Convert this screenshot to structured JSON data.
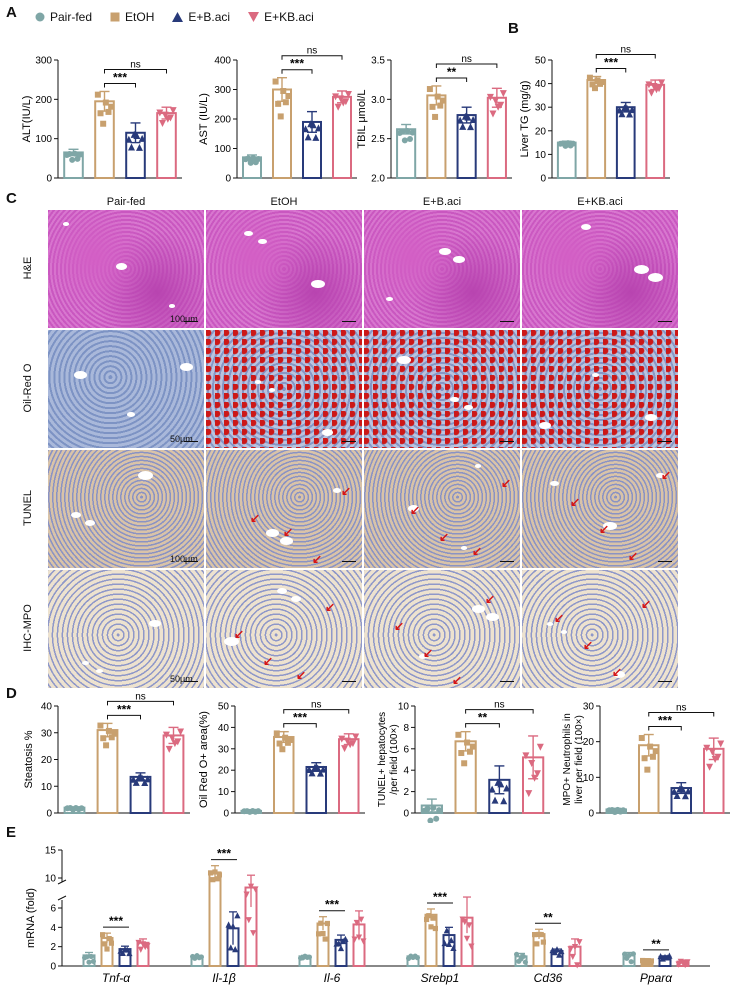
{
  "colors": {
    "pairfed": "#7fa6a6",
    "etoh": "#c8a06e",
    "bac": "#283a7a",
    "kbac": "#db6a80"
  },
  "panel_letters": [
    "A",
    "B",
    "C",
    "D",
    "E"
  ],
  "legend": [
    {
      "label": "Pair-fed",
      "marker": "circle",
      "color": "#7fa6a6"
    },
    {
      "label": "EtOH",
      "marker": "square",
      "color": "#c8a06e"
    },
    {
      "label": "E+B.aci",
      "marker": "triangle-up",
      "color": "#283a7a"
    },
    {
      "label": "E+KB.aci",
      "marker": "triangle-down",
      "color": "#db6a80"
    }
  ],
  "histology": {
    "columns": [
      "Pair-fed",
      "EtOH",
      "E+B.aci",
      "E+KB.aci"
    ],
    "rows": [
      "H&E",
      "Oil-Red O",
      "TUNEL",
      "IHC-MPO"
    ],
    "scale_labels": [
      "100μm",
      "50μm",
      "100μm",
      "50μm"
    ]
  },
  "chart_data": [
    {
      "type": "bar",
      "panel": "A",
      "categories": [
        "Pair-fed",
        "EtOH",
        "E+B.aci",
        "E+KB.aci"
      ],
      "values": [
        65,
        195,
        115,
        165
      ],
      "errors": [
        8,
        25,
        25,
        15
      ],
      "ylabel": "ALT(IU/L)",
      "ylim": [
        0,
        300
      ],
      "ticks": [
        0,
        100,
        200,
        300
      ],
      "significance": [
        {
          "from": 1,
          "to": 2,
          "label": "***"
        },
        {
          "from": 1,
          "to": 3,
          "label": "ns"
        }
      ]
    },
    {
      "type": "bar",
      "panel": "A",
      "categories": [
        "Pair-fed",
        "EtOH",
        "E+B.aci",
        "E+KB.aci"
      ],
      "values": [
        70,
        300,
        190,
        275
      ],
      "errors": [
        8,
        40,
        35,
        20
      ],
      "ylabel": "AST (IU/L)",
      "ylim": [
        0,
        400
      ],
      "ticks": [
        0,
        100,
        200,
        300,
        400
      ],
      "significance": [
        {
          "from": 1,
          "to": 2,
          "label": "***"
        },
        {
          "from": 1,
          "to": 3,
          "label": "ns"
        }
      ]
    },
    {
      "type": "bar",
      "panel": "A",
      "categories": [
        "Pair-fed",
        "EtOH",
        "E+B.aci",
        "E+KB.aci"
      ],
      "values": [
        2.62,
        3.05,
        2.8,
        3.02
      ],
      "errors": [
        0.06,
        0.12,
        0.1,
        0.12
      ],
      "ylabel": "TBIL μmol/L",
      "ylim": [
        2.0,
        3.5
      ],
      "ticks": [
        2.0,
        2.5,
        3.0,
        3.5
      ],
      "significance": [
        {
          "from": 1,
          "to": 2,
          "label": "**"
        },
        {
          "from": 1,
          "to": 3,
          "label": "ns"
        }
      ]
    },
    {
      "type": "bar",
      "panel": "B",
      "categories": [
        "Pair-fed",
        "EtOH",
        "E+B.aci",
        "E+KB.aci"
      ],
      "values": [
        15,
        41.5,
        30,
        39.5
      ],
      "errors": [
        0.6,
        1.5,
        2,
        2
      ],
      "ylabel": "Liver TG (mg/g)",
      "ylim": [
        0,
        50
      ],
      "ticks": [
        0,
        10,
        20,
        30,
        40,
        50
      ],
      "significance": [
        {
          "from": 1,
          "to": 2,
          "label": "***"
        },
        {
          "from": 1,
          "to": 3,
          "label": "ns"
        }
      ]
    },
    {
      "type": "bar",
      "panel": "D",
      "categories": [
        "Pair-fed",
        "EtOH",
        "E+B.aci",
        "E+KB.aci"
      ],
      "values": [
        2,
        31,
        13.5,
        29
      ],
      "errors": [
        0.3,
        2.5,
        1.5,
        3
      ],
      "ylabel": "Steatosis %",
      "ylim": [
        0,
        40
      ],
      "ticks": [
        0,
        10,
        20,
        30,
        40
      ],
      "significance": [
        {
          "from": 1,
          "to": 2,
          "label": "***"
        },
        {
          "from": 1,
          "to": 3,
          "label": "ns"
        }
      ]
    },
    {
      "type": "bar",
      "panel": "D",
      "categories": [
        "Pair-fed",
        "EtOH",
        "E+B.aci",
        "E+KB.aci"
      ],
      "values": [
        1,
        35.5,
        21.5,
        34.5
      ],
      "errors": [
        0.2,
        2.5,
        2,
        2.5
      ],
      "ylabel": "Oil Red O+ area(%)",
      "ylim": [
        0,
        50
      ],
      "ticks": [
        0,
        10,
        20,
        30,
        40,
        50
      ],
      "significance": [
        {
          "from": 1,
          "to": 2,
          "label": "***"
        },
        {
          "from": 1,
          "to": 3,
          "label": "ns"
        }
      ]
    },
    {
      "type": "bar",
      "panel": "D",
      "categories": [
        "Pair-fed",
        "EtOH",
        "E+B.aci",
        "E+KB.aci"
      ],
      "values": [
        0.7,
        6.7,
        3.1,
        5.2
      ],
      "errors": [
        0.6,
        0.9,
        1.3,
        2
      ],
      "ylabel": "TUNEL+ hepatocytes /per field (100×)",
      "ylim": [
        0,
        10
      ],
      "ticks": [
        0,
        2,
        4,
        6,
        8,
        10
      ],
      "significance": [
        {
          "from": 1,
          "to": 2,
          "label": "**"
        },
        {
          "from": 1,
          "to": 3,
          "label": "ns"
        }
      ]
    },
    {
      "type": "bar",
      "panel": "D",
      "categories": [
        "Pair-fed",
        "EtOH",
        "E+B.aci",
        "E+KB.aci"
      ],
      "values": [
        1,
        19,
        7,
        18
      ],
      "errors": [
        0.3,
        3,
        1.5,
        3
      ],
      "ylabel": "MPO+ Neutrophils in liver per field (100×)",
      "ylim": [
        0,
        30
      ],
      "ticks": [
        0,
        10,
        20,
        30
      ],
      "significance": [
        {
          "from": 1,
          "to": 2,
          "label": "***"
        },
        {
          "from": 1,
          "to": 3,
          "label": "ns"
        }
      ]
    },
    {
      "type": "bar",
      "panel": "E",
      "ylabel": "mRNA (fold)",
      "ticks": [
        "0",
        "2",
        "4",
        "6",
        "10",
        "15"
      ],
      "categories": [
        "Tnf-α",
        "Il-1β",
        "Il-6",
        "Srebp1",
        "Cd36",
        "Pparα"
      ],
      "series": [
        {
          "name": "Pair-fed",
          "values": [
            1.1,
            1.0,
            1.0,
            1.0,
            1.0,
            1.1
          ],
          "errors": [
            0.3,
            0.1,
            0.1,
            0.1,
            0.3,
            0.3
          ]
        },
        {
          "name": "EtOH",
          "values": [
            2.9,
            11.0,
            4.4,
            5.3,
            3.3,
            0.55
          ],
          "errors": [
            0.5,
            1.2,
            0.7,
            0.6,
            0.5,
            0.2
          ]
        },
        {
          "name": "E+B.aci",
          "values": [
            1.75,
            3.9,
            2.7,
            3.2,
            1.55,
            0.95
          ],
          "errors": [
            0.3,
            1.7,
            0.5,
            0.8,
            0.2,
            0.1
          ]
        },
        {
          "name": "E+KB.aci",
          "values": [
            2.4,
            8.3,
            4.3,
            5.0,
            2.0,
            0.45
          ],
          "errors": [
            0.4,
            2.2,
            1.4,
            1.6,
            0.8,
            0.15
          ]
        }
      ],
      "significance": [
        {
          "group": 0,
          "label": "***"
        },
        {
          "group": 1,
          "label": "***"
        },
        {
          "group": 2,
          "label": "***"
        },
        {
          "group": 3,
          "label": "***"
        },
        {
          "group": 4,
          "label": "**"
        },
        {
          "group": 5,
          "label": "**"
        }
      ]
    }
  ]
}
